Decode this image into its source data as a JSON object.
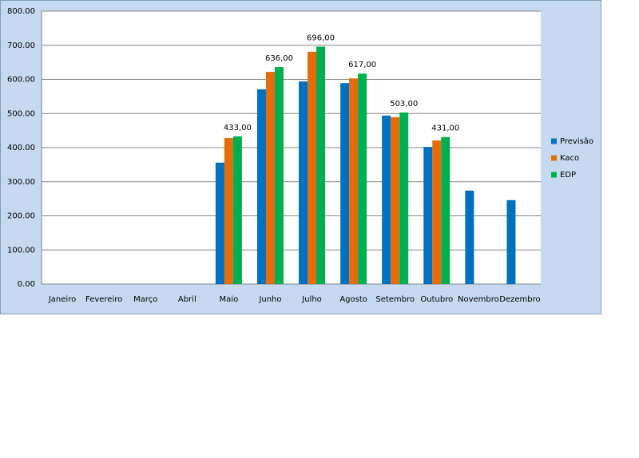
{
  "chart_data": {
    "type": "bar",
    "categories": [
      "Janeiro",
      "Fevereiro",
      "Março",
      "Abril",
      "Maio",
      "Junho",
      "Julho",
      "Agosto",
      "Setembro",
      "Outubro",
      "Novembro",
      "Dezembro"
    ],
    "series": [
      {
        "name": "Previsão",
        "color": "#0070c0",
        "values": [
          null,
          null,
          null,
          null,
          356,
          571,
          594,
          589,
          494,
          402,
          274,
          246
        ]
      },
      {
        "name": "Kaco",
        "color": "#e46c0a",
        "values": [
          null,
          null,
          null,
          null,
          428,
          622,
          681,
          603,
          489,
          421,
          null,
          null
        ]
      },
      {
        "name": "EDP",
        "color": "#00b050",
        "values": [
          null,
          null,
          null,
          null,
          433,
          636,
          696,
          617,
          503,
          431,
          null,
          null
        ],
        "value_labels": [
          null,
          null,
          null,
          null,
          "433,00",
          "636,00",
          "696,00",
          "617,00",
          "503,00",
          "431,00",
          null,
          null
        ]
      }
    ],
    "ylim": [
      0,
      800
    ],
    "yticks": [
      {
        "value": 0,
        "label": "0.00"
      },
      {
        "value": 100,
        "label": "100.00"
      },
      {
        "value": 200,
        "label": "200.00"
      },
      {
        "value": 300,
        "label": "300.00"
      },
      {
        "value": 400,
        "label": "400.00"
      },
      {
        "value": 500,
        "label": "500.00"
      },
      {
        "value": 600,
        "label": "600.00"
      },
      {
        "value": 700,
        "label": "700.00"
      },
      {
        "value": 800,
        "label": "800.00"
      }
    ],
    "grid": true,
    "legend": "right"
  }
}
